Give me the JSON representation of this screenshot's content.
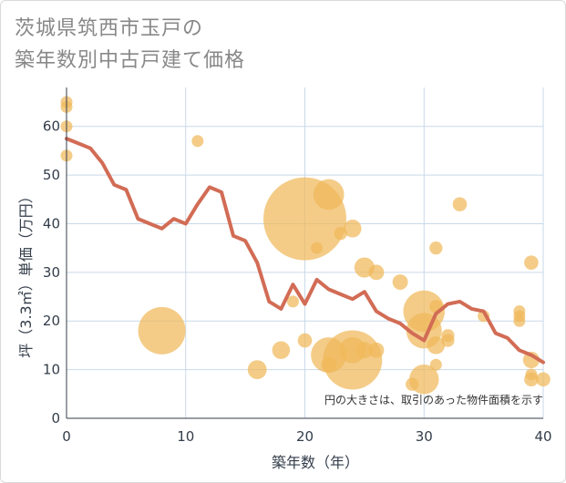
{
  "title_line1": "茨城県筑西市玉戸の",
  "title_line2": "築年数別中古戸建て価格",
  "chart_data": {
    "type": "scatter",
    "title": "茨城県筑西市玉戸の築年数別中古戸建て価格",
    "xlabel": "築年数（年）",
    "ylabel": "坪（3.3㎡）単価（万円）",
    "xlim": [
      0,
      40
    ],
    "ylim": [
      0,
      68
    ],
    "xticks": [
      "0",
      "10",
      "20",
      "30",
      "40"
    ],
    "yticks": [
      "0",
      "10",
      "20",
      "30",
      "40",
      "50",
      "60"
    ],
    "note": "円の大きさは、取引のあった物件面積を示す",
    "bubble_color": "#f0b95a",
    "line_color": "#d26c55",
    "points": [
      {
        "x": 0,
        "y": 65,
        "s": 1
      },
      {
        "x": 0,
        "y": 64,
        "s": 1
      },
      {
        "x": 0,
        "y": 60,
        "s": 1
      },
      {
        "x": 0,
        "y": 54,
        "s": 1
      },
      {
        "x": 8,
        "y": 18,
        "s": 4
      },
      {
        "x": 11,
        "y": 57,
        "s": 1
      },
      {
        "x": 16,
        "y": 10,
        "s": 1.6
      },
      {
        "x": 18,
        "y": 14,
        "s": 1.5
      },
      {
        "x": 19,
        "y": 24,
        "s": 1
      },
      {
        "x": 20,
        "y": 41,
        "s": 7
      },
      {
        "x": 20,
        "y": 16,
        "s": 1.2
      },
      {
        "x": 21,
        "y": 35,
        "s": 1
      },
      {
        "x": 22,
        "y": 46,
        "s": 2.6
      },
      {
        "x": 22,
        "y": 13,
        "s": 3
      },
      {
        "x": 22,
        "y": 11,
        "s": 1.3
      },
      {
        "x": 23,
        "y": 38,
        "s": 1.1
      },
      {
        "x": 24,
        "y": 39,
        "s": 1.5
      },
      {
        "x": 24,
        "y": 12,
        "s": 5
      },
      {
        "x": 24,
        "y": 14,
        "s": 2.2
      },
      {
        "x": 25,
        "y": 31,
        "s": 1.7
      },
      {
        "x": 25,
        "y": 14,
        "s": 1.4
      },
      {
        "x": 26,
        "y": 30,
        "s": 1.3
      },
      {
        "x": 26,
        "y": 14,
        "s": 1.3
      },
      {
        "x": 28,
        "y": 28,
        "s": 1.3
      },
      {
        "x": 29,
        "y": 7,
        "s": 1.1
      },
      {
        "x": 30,
        "y": 22,
        "s": 3.5
      },
      {
        "x": 30,
        "y": 18,
        "s": 3
      },
      {
        "x": 30,
        "y": 8,
        "s": 2.5
      },
      {
        "x": 31,
        "y": 35,
        "s": 1.1
      },
      {
        "x": 31,
        "y": 23,
        "s": 1.1
      },
      {
        "x": 31,
        "y": 15,
        "s": 1.5
      },
      {
        "x": 31,
        "y": 11,
        "s": 1
      },
      {
        "x": 32,
        "y": 17,
        "s": 1.1
      },
      {
        "x": 32,
        "y": 16,
        "s": 1.1
      },
      {
        "x": 33,
        "y": 44,
        "s": 1.2
      },
      {
        "x": 35,
        "y": 21,
        "s": 1
      },
      {
        "x": 38,
        "y": 22,
        "s": 1
      },
      {
        "x": 38,
        "y": 21,
        "s": 1
      },
      {
        "x": 38,
        "y": 20,
        "s": 1
      },
      {
        "x": 39,
        "y": 32,
        "s": 1.2
      },
      {
        "x": 39,
        "y": 12,
        "s": 1.4
      },
      {
        "x": 39,
        "y": 9,
        "s": 1
      },
      {
        "x": 39,
        "y": 8,
        "s": 1.2
      },
      {
        "x": 40,
        "y": 8,
        "s": 1.2
      }
    ],
    "trend": [
      {
        "x": 0,
        "y": 57.5
      },
      {
        "x": 1,
        "y": 56.5
      },
      {
        "x": 2,
        "y": 55.5
      },
      {
        "x": 3,
        "y": 52.5
      },
      {
        "x": 4,
        "y": 48
      },
      {
        "x": 5,
        "y": 47
      },
      {
        "x": 6,
        "y": 41
      },
      {
        "x": 7,
        "y": 40
      },
      {
        "x": 8,
        "y": 39
      },
      {
        "x": 9,
        "y": 41
      },
      {
        "x": 10,
        "y": 40
      },
      {
        "x": 11,
        "y": 44
      },
      {
        "x": 12,
        "y": 47.5
      },
      {
        "x": 13,
        "y": 46.5
      },
      {
        "x": 14,
        "y": 37.5
      },
      {
        "x": 15,
        "y": 36.5
      },
      {
        "x": 16,
        "y": 32
      },
      {
        "x": 17,
        "y": 24
      },
      {
        "x": 18,
        "y": 22.5
      },
      {
        "x": 19,
        "y": 27.5
      },
      {
        "x": 20,
        "y": 23.5
      },
      {
        "x": 21,
        "y": 28.5
      },
      {
        "x": 22,
        "y": 26.5
      },
      {
        "x": 23,
        "y": 25.5
      },
      {
        "x": 24,
        "y": 24.5
      },
      {
        "x": 25,
        "y": 26
      },
      {
        "x": 26,
        "y": 22
      },
      {
        "x": 27,
        "y": 20.5
      },
      {
        "x": 28,
        "y": 19.5
      },
      {
        "x": 29,
        "y": 17.5
      },
      {
        "x": 30,
        "y": 16
      },
      {
        "x": 31,
        "y": 21.5
      },
      {
        "x": 32,
        "y": 23.5
      },
      {
        "x": 33,
        "y": 24
      },
      {
        "x": 34,
        "y": 22.5
      },
      {
        "x": 35,
        "y": 22
      },
      {
        "x": 36,
        "y": 17.5
      },
      {
        "x": 37,
        "y": 16.5
      },
      {
        "x": 38,
        "y": 14
      },
      {
        "x": 39,
        "y": 13
      },
      {
        "x": 40,
        "y": 11.5
      }
    ]
  }
}
